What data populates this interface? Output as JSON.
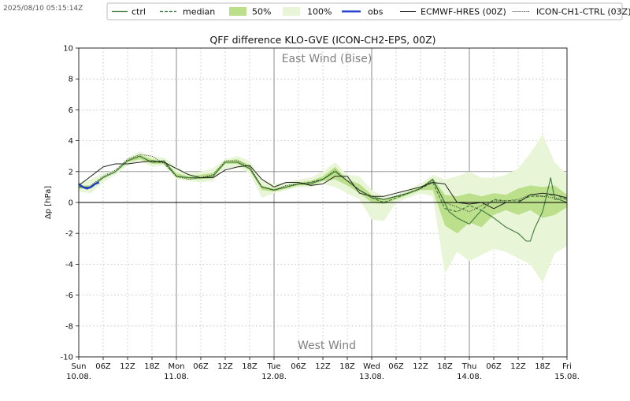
{
  "timestamp": "2025/08/10 05:15:14Z",
  "legend": {
    "ctrl": "ctrl",
    "median": "median",
    "p50": "50%",
    "p100": "100%",
    "obs": "obs",
    "ecmwf": "ECMWF-HRES (00Z)",
    "icon_ch1": "ICON-CH1-CTRL (03Z)"
  },
  "colors": {
    "ctrl": "#3d7a3d",
    "median": "#3d7a3d",
    "band50": "#bcdf8c",
    "band100": "#e8f5d6",
    "obs": "#1f3ec9",
    "ecmwf": "#222222",
    "icon_ch1": "#222222",
    "grid": "#bbbbbb",
    "day_line": "#888888"
  },
  "chart_data": {
    "type": "line",
    "title": "QFF difference KLO-GVE (ICON-CH2-EPS, 00Z)",
    "ylabel": "Δp [hPa]",
    "ylim": [
      -10,
      10
    ],
    "xlim": [
      0,
      120
    ],
    "x_unit": "hours since 2025-08-10 00Z",
    "yticks": [
      -10,
      -8,
      -6,
      -4,
      -2,
      0,
      2,
      4,
      6,
      8,
      10
    ],
    "annotations": {
      "top": "East Wind (Bise)",
      "bottom": "West Wind"
    },
    "xticks": [
      {
        "x": 0,
        "line1": "Sun",
        "line2": "10.08."
      },
      {
        "x": 6,
        "line1": "06Z",
        "line2": ""
      },
      {
        "x": 12,
        "line1": "12Z",
        "line2": ""
      },
      {
        "x": 18,
        "line1": "18Z",
        "line2": ""
      },
      {
        "x": 24,
        "line1": "Mon",
        "line2": "11.08."
      },
      {
        "x": 30,
        "line1": "06Z",
        "line2": ""
      },
      {
        "x": 36,
        "line1": "12Z",
        "line2": ""
      },
      {
        "x": 42,
        "line1": "18Z",
        "line2": ""
      },
      {
        "x": 48,
        "line1": "Tue",
        "line2": "12.08."
      },
      {
        "x": 54,
        "line1": "06Z",
        "line2": ""
      },
      {
        "x": 60,
        "line1": "12Z",
        "line2": ""
      },
      {
        "x": 66,
        "line1": "18Z",
        "line2": ""
      },
      {
        "x": 72,
        "line1": "Wed",
        "line2": "13.08."
      },
      {
        "x": 78,
        "line1": "06Z",
        "line2": ""
      },
      {
        "x": 84,
        "line1": "12Z",
        "line2": ""
      },
      {
        "x": 90,
        "line1": "18Z",
        "line2": ""
      },
      {
        "x": 96,
        "line1": "Thu",
        "line2": "14.08."
      },
      {
        "x": 102,
        "line1": "06Z",
        "line2": ""
      },
      {
        "x": 108,
        "line1": "12Z",
        "line2": ""
      },
      {
        "x": 114,
        "line1": "18Z",
        "line2": ""
      },
      {
        "x": 120,
        "line1": "Fri",
        "line2": "15.08."
      }
    ],
    "day_boundaries": [
      24,
      48,
      72,
      96
    ],
    "series": [
      {
        "key": "band100",
        "style": "band",
        "x": [
          0,
          3,
          6,
          9,
          12,
          15,
          18,
          21,
          24,
          27,
          30,
          33,
          36,
          39,
          42,
          45,
          48,
          51,
          54,
          57,
          60,
          63,
          66,
          69,
          72,
          75,
          78,
          81,
          84,
          87,
          90,
          93,
          96,
          99,
          102,
          105,
          108,
          111,
          114,
          117,
          120
        ],
        "low": [
          0.7,
          0.6,
          1.3,
          1.8,
          2.4,
          2.7,
          2.3,
          2.4,
          1.5,
          1.4,
          1.3,
          1.4,
          2.2,
          2.3,
          1.9,
          0.3,
          0.6,
          0.8,
          1.0,
          1.0,
          1.2,
          1.0,
          0.6,
          0.2,
          -1.1,
          -1.2,
          0.0,
          0.3,
          0.6,
          0.4,
          -4.6,
          -3.2,
          -3.8,
          -3.4,
          -3.0,
          -3.2,
          -3.6,
          -4.0,
          -5.2,
          -3.3,
          -2.8
        ],
        "high": [
          1.3,
          1.5,
          1.9,
          2.1,
          2.9,
          3.3,
          3.0,
          2.9,
          2.3,
          1.9,
          2.0,
          2.2,
          2.8,
          3.0,
          2.7,
          1.4,
          1.2,
          1.3,
          1.5,
          1.6,
          2.0,
          2.6,
          1.8,
          1.7,
          0.8,
          0.4,
          0.5,
          0.9,
          1.2,
          1.8,
          1.5,
          1.7,
          2.0,
          1.6,
          1.6,
          1.8,
          2.2,
          3.2,
          4.4,
          2.6,
          1.8
        ]
      },
      {
        "key": "band50",
        "style": "band",
        "x": [
          0,
          3,
          6,
          9,
          12,
          15,
          18,
          21,
          24,
          27,
          30,
          33,
          36,
          39,
          42,
          45,
          48,
          51,
          54,
          57,
          60,
          63,
          66,
          69,
          72,
          75,
          78,
          81,
          84,
          87,
          90,
          93,
          96,
          99,
          102,
          105,
          108,
          111,
          114,
          117,
          120
        ],
        "low": [
          0.9,
          0.9,
          1.6,
          1.9,
          2.6,
          2.8,
          2.5,
          2.5,
          1.6,
          1.5,
          1.5,
          1.6,
          2.5,
          2.5,
          2.1,
          0.8,
          0.7,
          0.9,
          1.1,
          1.1,
          1.4,
          1.5,
          1.1,
          0.6,
          0.0,
          -0.1,
          0.2,
          0.5,
          0.8,
          0.8,
          -1.5,
          -2.0,
          -1.3,
          -1.6,
          -0.8,
          -0.5,
          -0.8,
          -0.5,
          -1.0,
          -0.8,
          -0.3
        ],
        "high": [
          1.1,
          1.1,
          1.7,
          2.0,
          2.8,
          3.1,
          2.8,
          2.7,
          1.9,
          1.7,
          1.8,
          1.9,
          2.7,
          2.8,
          2.4,
          1.1,
          0.9,
          1.1,
          1.3,
          1.4,
          1.7,
          2.3,
          1.5,
          1.2,
          0.5,
          0.2,
          0.4,
          0.7,
          1.0,
          1.6,
          0.5,
          0.4,
          0.6,
          0.4,
          0.6,
          0.5,
          0.9,
          1.1,
          1.0,
          1.1,
          0.5
        ]
      },
      {
        "key": "median",
        "style": "dashed",
        "x": [
          0,
          3,
          6,
          9,
          12,
          15,
          18,
          21,
          24,
          27,
          30,
          33,
          36,
          39,
          42,
          45,
          48,
          51,
          54,
          57,
          60,
          63,
          66,
          69,
          72,
          75,
          78,
          81,
          84,
          87,
          90,
          93,
          96,
          99,
          102,
          105,
          108,
          111,
          114,
          117,
          120
        ],
        "y": [
          1.0,
          1.0,
          1.6,
          2.0,
          2.7,
          3.0,
          2.6,
          2.6,
          1.7,
          1.6,
          1.6,
          1.7,
          2.6,
          2.6,
          2.2,
          1.0,
          0.8,
          1.0,
          1.2,
          1.3,
          1.5,
          2.0,
          1.4,
          0.8,
          0.3,
          0.0,
          0.3,
          0.6,
          0.9,
          1.3,
          -0.4,
          -0.6,
          -0.2,
          -0.5,
          0.2,
          0.1,
          0.1,
          0.4,
          0.4,
          0.5,
          0.2
        ]
      },
      {
        "key": "ctrl",
        "style": "solid",
        "x": [
          0,
          3,
          6,
          9,
          12,
          15,
          18,
          21,
          24,
          27,
          30,
          33,
          36,
          39,
          42,
          45,
          48,
          51,
          54,
          57,
          60,
          63,
          66,
          69,
          72,
          75,
          78,
          81,
          84,
          87,
          89,
          91,
          93,
          96,
          99,
          102,
          105,
          108,
          110,
          111,
          112,
          114,
          116,
          117,
          118,
          120
        ],
        "y": [
          1.0,
          1.0,
          1.6,
          2.0,
          2.7,
          3.0,
          2.6,
          2.7,
          1.7,
          1.6,
          1.6,
          1.7,
          2.6,
          2.6,
          2.2,
          1.0,
          0.8,
          1.0,
          1.2,
          1.2,
          1.5,
          2.0,
          1.4,
          0.8,
          0.3,
          0.2,
          0.4,
          0.6,
          0.9,
          1.5,
          0.5,
          -0.6,
          -1.0,
          -1.4,
          -0.5,
          -1.0,
          -1.6,
          -2.0,
          -2.5,
          -2.5,
          -1.7,
          -0.6,
          1.6,
          0.2,
          0.2,
          0.0
        ]
      },
      {
        "key": "ecmwf",
        "style": "solid",
        "x": [
          0,
          3,
          6,
          9,
          12,
          15,
          18,
          21,
          24,
          27,
          30,
          33,
          36,
          39,
          42,
          45,
          48,
          51,
          54,
          57,
          60,
          63,
          66,
          69,
          72,
          75,
          78,
          81,
          84,
          87,
          90,
          93,
          96,
          99,
          102,
          105,
          108,
          111,
          114,
          117,
          120
        ],
        "y": [
          1.1,
          1.7,
          2.3,
          2.5,
          2.5,
          2.6,
          2.7,
          2.6,
          2.2,
          1.8,
          1.6,
          1.6,
          2.1,
          2.3,
          2.4,
          1.5,
          1.0,
          1.3,
          1.3,
          1.1,
          1.2,
          1.7,
          1.7,
          0.6,
          0.4,
          0.4,
          0.6,
          0.8,
          1.0,
          1.3,
          1.2,
          0.0,
          -0.1,
          0.0,
          -0.4,
          0.0,
          0.0,
          0.5,
          0.6,
          0.5,
          0.3
        ]
      },
      {
        "key": "icon_ch1",
        "style": "dotted",
        "x": [
          3,
          6,
          9,
          12,
          15,
          18,
          21,
          24,
          27,
          30,
          33,
          36,
          39,
          42,
          45,
          48,
          51,
          54,
          57,
          60,
          63,
          66,
          69,
          72,
          75,
          78,
          81,
          84,
          87,
          90,
          93,
          96,
          99,
          102,
          105,
          108,
          111,
          114,
          117,
          120
        ],
        "y": [
          1.1,
          1.7,
          2.1,
          2.8,
          3.1,
          3.0,
          2.5,
          1.7,
          1.5,
          1.6,
          1.8,
          2.7,
          2.7,
          2.3,
          1.0,
          0.8,
          1.1,
          1.2,
          1.3,
          1.5,
          2.1,
          1.4,
          0.8,
          0.4,
          0.2,
          0.4,
          0.6,
          0.9,
          1.4,
          0.0,
          -0.3,
          -0.6,
          -0.2,
          0.1,
          0.1,
          0.2,
          0.5,
          0.4,
          0.3,
          0.2
        ]
      },
      {
        "key": "obs",
        "style": "obs",
        "x": [
          0,
          1,
          2,
          3,
          4,
          5
        ],
        "y": [
          1.2,
          1.0,
          0.9,
          1.0,
          1.2,
          1.3
        ]
      }
    ]
  }
}
